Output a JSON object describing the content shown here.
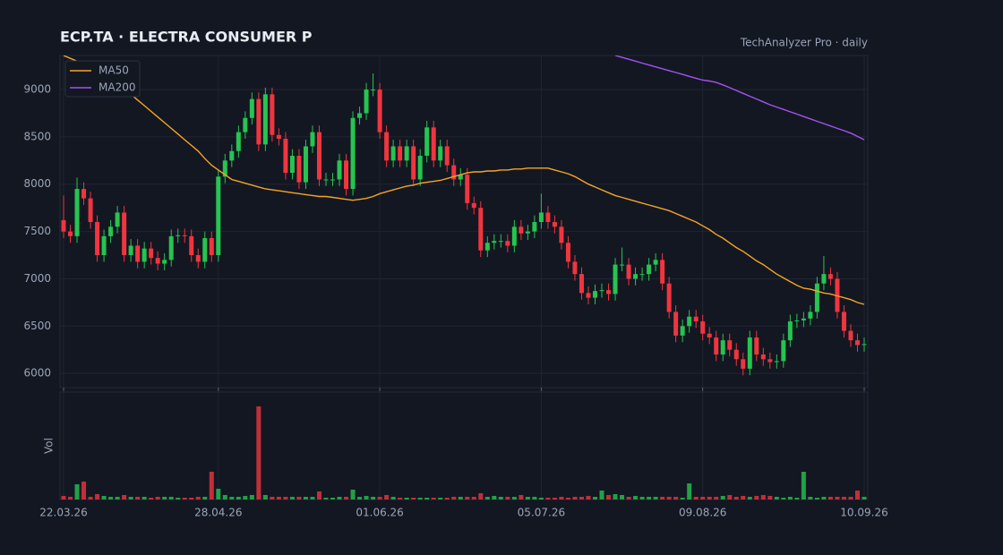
{
  "chart_data": {
    "type": "candlestick",
    "title": "ECP.TA  ·  ELECTRA CONSUMER P",
    "subtitle": "TechAnalyzer Pro · daily",
    "volume_label": "Vol",
    "legend": "upper left",
    "grid": true,
    "up_color": "#26c450",
    "down_color": "#f0353f",
    "ylim": [
      5850,
      9360
    ],
    "yticks": [
      6000,
      6500,
      7000,
      7500,
      8000,
      8500,
      9000
    ],
    "categories": [
      "22.03.26",
      null,
      null,
      null,
      null,
      null,
      null,
      null,
      null,
      null,
      null,
      null,
      null,
      null,
      null,
      null,
      null,
      null,
      null,
      null,
      null,
      null,
      null,
      "28.04.26",
      null,
      null,
      null,
      null,
      null,
      null,
      null,
      null,
      null,
      null,
      null,
      null,
      null,
      null,
      null,
      null,
      null,
      null,
      null,
      null,
      null,
      null,
      null,
      "01.06.26",
      null,
      null,
      null,
      null,
      null,
      null,
      null,
      null,
      null,
      null,
      null,
      null,
      null,
      null,
      null,
      null,
      null,
      null,
      null,
      null,
      null,
      null,
      null,
      "05.07.26",
      null,
      null,
      null,
      null,
      null,
      null,
      null,
      null,
      null,
      null,
      null,
      null,
      null,
      null,
      null,
      null,
      null,
      null,
      null,
      null,
      null,
      null,
      null,
      "09.08.26",
      null,
      null,
      null,
      null,
      null,
      null,
      null,
      null,
      null,
      null,
      null,
      null,
      null,
      null,
      null,
      null,
      null,
      null,
      null,
      null,
      null,
      null,
      null,
      "10.09.26"
    ],
    "open": [
      7620,
      7500,
      7450,
      7950,
      7850,
      7600,
      7250,
      7450,
      7550,
      7700,
      7250,
      7350,
      7180,
      7320,
      7220,
      7160,
      7200,
      7450,
      7460,
      7450,
      7250,
      7180,
      7430,
      7250,
      8080,
      8250,
      8350,
      8550,
      8700,
      8900,
      8420,
      8950,
      8520,
      8480,
      8120,
      8300,
      8020,
      8400,
      8550,
      8050,
      8050,
      8050,
      8250,
      7950,
      8700,
      8750,
      9000,
      9000,
      8550,
      8250,
      8400,
      8250,
      8400,
      8050,
      8300,
      8600,
      8250,
      8400,
      8200,
      8050,
      8100,
      7800,
      7750,
      7300,
      7380,
      7400,
      7400,
      7350,
      7550,
      7480,
      7500,
      7600,
      7700,
      7600,
      7550,
      7380,
      7180,
      7050,
      6850,
      6800,
      6870,
      6880,
      6840,
      7150,
      7150,
      7000,
      7050,
      7050,
      7150,
      7200,
      6950,
      6650,
      6400,
      6500,
      6600,
      6550,
      6420,
      6380,
      6200,
      6350,
      6250,
      6150,
      6050,
      6380,
      6200,
      6150,
      6120,
      6130,
      6350,
      6550,
      6560,
      6580,
      6650,
      6950,
      7050,
      7000,
      6650,
      6450,
      6350,
      6300
    ],
    "high": [
      7880,
      7570,
      8070,
      8020,
      7920,
      7670,
      7520,
      7620,
      7770,
      7770,
      7420,
      7420,
      7390,
      7390,
      7290,
      7270,
      7520,
      7530,
      7530,
      7520,
      7320,
      7500,
      7500,
      8150,
      8320,
      8420,
      8620,
      8770,
      8970,
      8970,
      9020,
      9020,
      8590,
      8550,
      8370,
      8370,
      8470,
      8620,
      8620,
      8120,
      8120,
      8320,
      8320,
      8770,
      8820,
      9070,
      9170,
      9070,
      8620,
      8470,
      8470,
      8470,
      8470,
      8370,
      8670,
      8670,
      8470,
      8470,
      8270,
      8170,
      8170,
      7870,
      7820,
      7450,
      7470,
      7470,
      7470,
      7620,
      7620,
      7570,
      7670,
      7900,
      7770,
      7670,
      7620,
      7450,
      7250,
      7120,
      6920,
      6940,
      6950,
      6950,
      7220,
      7330,
      7220,
      7120,
      7120,
      7220,
      7270,
      7270,
      7020,
      6720,
      6570,
      6670,
      6670,
      6620,
      6490,
      6450,
      6420,
      6420,
      6320,
      6220,
      6450,
      6450,
      6270,
      6220,
      6200,
      6420,
      6620,
      6630,
      6650,
      6720,
      7020,
      7240,
      7120,
      7070,
      6720,
      6520,
      6420,
      6380
    ],
    "low": [
      7430,
      7380,
      7380,
      7780,
      7530,
      7180,
      7180,
      7380,
      7480,
      7180,
      7180,
      7110,
      7110,
      7150,
      7090,
      7090,
      7130,
      7380,
      7380,
      7180,
      7110,
      7110,
      7180,
      7180,
      8010,
      8180,
      8280,
      8480,
      8630,
      8350,
      8350,
      8450,
      8410,
      8050,
      8050,
      7950,
      7950,
      8330,
      7980,
      7980,
      7980,
      7980,
      7880,
      7880,
      8630,
      8680,
      8930,
      8480,
      8180,
      8180,
      8180,
      8180,
      7980,
      7980,
      8230,
      8180,
      8180,
      8130,
      7980,
      7980,
      7730,
      7680,
      7230,
      7230,
      7310,
      7330,
      7280,
      7280,
      7410,
      7410,
      7430,
      7530,
      7530,
      7480,
      7310,
      7110,
      6980,
      6780,
      6730,
      6730,
      6800,
      6770,
      6770,
      7080,
      6930,
      6930,
      6980,
      6980,
      7080,
      6880,
      6580,
      6330,
      6330,
      6430,
      6480,
      6350,
      6310,
      6130,
      6130,
      6180,
      6080,
      5980,
      5980,
      6130,
      6080,
      6050,
      6050,
      6060,
      6280,
      6480,
      6490,
      6510,
      6580,
      6880,
      6930,
      6580,
      6380,
      6280,
      6230,
      6230
    ],
    "close": [
      7500,
      7450,
      7950,
      7850,
      7600,
      7250,
      7450,
      7550,
      7700,
      7250,
      7350,
      7180,
      7320,
      7220,
      7160,
      7200,
      7450,
      7460,
      7450,
      7250,
      7180,
      7430,
      7250,
      8080,
      8250,
      8350,
      8550,
      8700,
      8900,
      8420,
      8950,
      8520,
      8480,
      8120,
      8300,
      8020,
      8400,
      8550,
      8050,
      8050,
      8050,
      8250,
      7950,
      8700,
      8750,
      9000,
      9000,
      8550,
      8250,
      8400,
      8250,
      8400,
      8050,
      8300,
      8600,
      8250,
      8400,
      8200,
      8050,
      8100,
      7800,
      7750,
      7300,
      7380,
      7400,
      7400,
      7350,
      7550,
      7480,
      7500,
      7600,
      7700,
      7600,
      7550,
      7380,
      7180,
      7050,
      6850,
      6800,
      6870,
      6880,
      6840,
      7150,
      7150,
      7000,
      7050,
      7050,
      7150,
      7200,
      6950,
      6650,
      6400,
      6500,
      6600,
      6550,
      6420,
      6380,
      6200,
      6350,
      6250,
      6150,
      6050,
      6380,
      6200,
      6150,
      6120,
      6130,
      6350,
      6550,
      6560,
      6580,
      6650,
      6950,
      7050,
      7000,
      6650,
      6450,
      6350,
      6300,
      6310
    ],
    "volume": [
      4,
      3,
      17,
      20,
      3,
      6,
      4,
      3,
      3,
      5,
      3,
      3,
      3,
      2,
      3,
      3,
      3,
      2,
      2,
      2,
      3,
      3,
      31,
      12,
      5,
      3,
      3,
      4,
      5,
      104,
      5,
      3,
      3,
      3,
      3,
      3,
      3,
      3,
      9,
      2,
      2,
      3,
      3,
      11,
      3,
      4,
      3,
      3,
      5,
      3,
      2,
      2,
      2,
      2,
      2,
      2,
      2,
      2,
      3,
      3,
      3,
      3,
      7,
      3,
      4,
      3,
      3,
      3,
      5,
      3,
      3,
      2,
      2,
      2,
      3,
      2,
      3,
      3,
      4,
      3,
      10,
      5,
      6,
      5,
      3,
      4,
      3,
      3,
      3,
      3,
      3,
      3,
      2,
      18,
      3,
      3,
      3,
      3,
      4,
      5,
      3,
      4,
      3,
      4,
      5,
      4,
      3,
      2,
      3,
      2,
      31,
      3,
      2,
      3,
      3,
      3,
      3,
      3,
      10,
      3
    ],
    "series": [
      {
        "name": "MA50",
        "color": "#f5a623",
        "values": [
          9360,
          9330,
          9300,
          9260,
          9230,
          9200,
          9150,
          9100,
          9050,
          9000,
          8950,
          8890,
          8830,
          8770,
          8710,
          8650,
          8590,
          8530,
          8470,
          8410,
          8350,
          8270,
          8200,
          8150,
          8100,
          8050,
          8030,
          8010,
          7990,
          7970,
          7950,
          7940,
          7930,
          7920,
          7910,
          7900,
          7890,
          7880,
          7870,
          7870,
          7860,
          7850,
          7840,
          7830,
          7840,
          7850,
          7870,
          7900,
          7920,
          7940,
          7960,
          7980,
          7990,
          8010,
          8020,
          8030,
          8040,
          8060,
          8080,
          8100,
          8120,
          8130,
          8130,
          8140,
          8140,
          8150,
          8150,
          8160,
          8160,
          8170,
          8170,
          8170,
          8170,
          8150,
          8130,
          8110,
          8080,
          8040,
          8000,
          7970,
          7940,
          7910,
          7880,
          7860,
          7840,
          7820,
          7800,
          7780,
          7760,
          7740,
          7720,
          7690,
          7660,
          7630,
          7600,
          7560,
          7520,
          7470,
          7430,
          7380,
          7330,
          7290,
          7240,
          7190,
          7150,
          7100,
          7050,
          7010,
          6970,
          6930,
          6900,
          6890,
          6870,
          6850,
          6840,
          6820,
          6800,
          6780,
          6750,
          6730
        ]
      },
      {
        "name": "MA200",
        "color": "#a552f0",
        "values": [
          null,
          null,
          null,
          null,
          null,
          null,
          null,
          null,
          null,
          null,
          null,
          null,
          null,
          null,
          null,
          null,
          null,
          null,
          null,
          null,
          null,
          null,
          null,
          null,
          null,
          null,
          null,
          null,
          null,
          null,
          null,
          null,
          null,
          null,
          null,
          null,
          null,
          null,
          null,
          null,
          null,
          null,
          null,
          null,
          null,
          null,
          null,
          null,
          null,
          null,
          null,
          null,
          null,
          null,
          null,
          null,
          null,
          null,
          null,
          null,
          null,
          null,
          null,
          null,
          null,
          null,
          null,
          null,
          null,
          null,
          null,
          null,
          null,
          null,
          null,
          null,
          null,
          null,
          null,
          null,
          null,
          null,
          9360,
          9340,
          9320,
          9300,
          9280,
          9260,
          9240,
          9220,
          9200,
          9180,
          9160,
          9140,
          9120,
          9100,
          9090,
          9075,
          9050,
          9020,
          8990,
          8960,
          8930,
          8900,
          8870,
          8840,
          8815,
          8790,
          8765,
          8740,
          8715,
          8690,
          8665,
          8640,
          8615,
          8590,
          8565,
          8540,
          8505,
          8470
        ]
      }
    ]
  }
}
